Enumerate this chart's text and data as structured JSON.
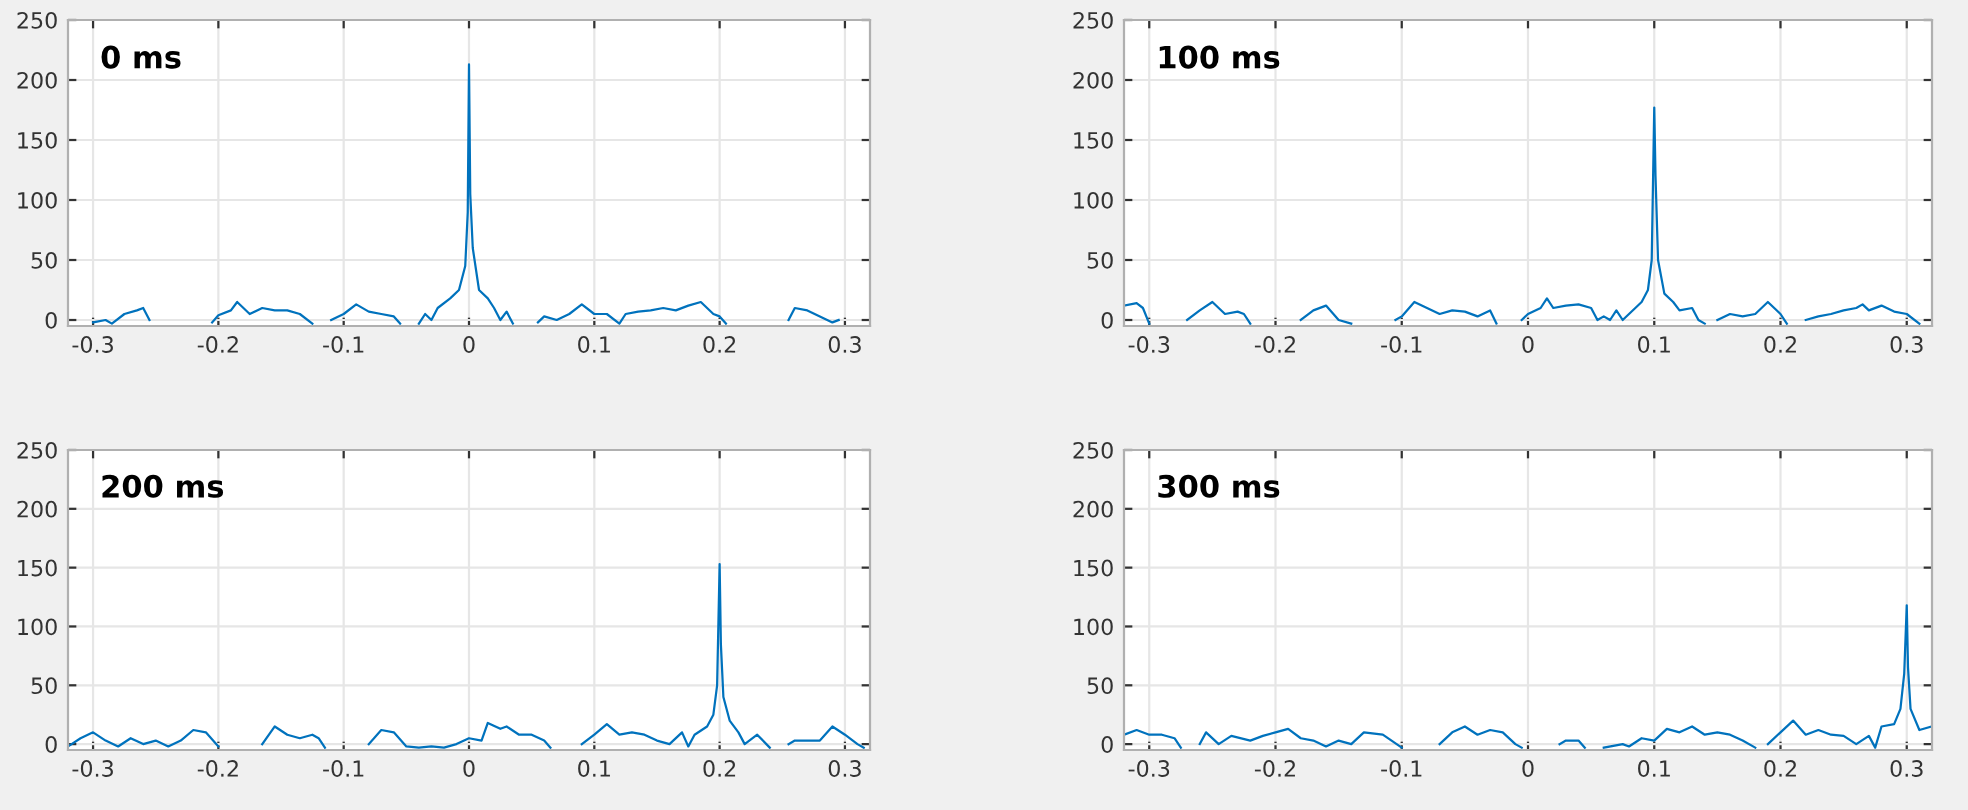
{
  "chart_data": [
    {
      "type": "line",
      "annotations": [
        "0 ms"
      ],
      "xlim": [
        -0.32,
        0.32
      ],
      "ylim": [
        -5,
        250
      ],
      "xticks": [
        -0.3,
        -0.2,
        -0.1,
        0,
        0.1,
        0.2,
        0.3
      ],
      "yticks": [
        0,
        50,
        100,
        150,
        200,
        250
      ],
      "grid": true,
      "series": [
        {
          "color": "#0072bd",
          "x": [
            -0.3,
            -0.29,
            -0.285,
            -0.275,
            -0.265,
            -0.26,
            -0.255,
            -0.25,
            -0.205,
            -0.2,
            -0.19,
            -0.185,
            -0.175,
            -0.165,
            -0.155,
            -0.145,
            -0.135,
            -0.125,
            -0.115,
            -0.11,
            -0.1,
            -0.09,
            -0.08,
            -0.07,
            -0.06,
            -0.055,
            -0.045,
            -0.04,
            -0.035,
            -0.03,
            -0.025,
            -0.015,
            -0.008,
            -0.003,
            -0.001,
            0,
            0.001,
            0.003,
            0.008,
            0.015,
            0.02,
            0.025,
            0.03,
            0.035,
            0.045,
            0.055,
            0.06,
            0.07,
            0.08,
            0.09,
            0.1,
            0.11,
            0.12,
            0.125,
            0.135,
            0.145,
            0.155,
            0.165,
            0.175,
            0.185,
            0.195,
            0.2,
            0.205,
            0.23,
            0.255,
            0.26,
            0.27,
            0.28,
            0.29,
            0.295
          ],
          "values": [
            -2,
            0,
            -3,
            5,
            8,
            10,
            0,
            null,
            -2,
            4,
            8,
            15,
            5,
            10,
            8,
            8,
            5,
            -3,
            null,
            0,
            5,
            13,
            7,
            5,
            3,
            -3,
            null,
            -3,
            5,
            0,
            10,
            18,
            25,
            45,
            90,
            213,
            105,
            60,
            25,
            18,
            10,
            0,
            7,
            -3,
            null,
            -2,
            3,
            0,
            5,
            13,
            5,
            5,
            -3,
            5,
            7,
            8,
            10,
            8,
            12,
            15,
            5,
            3,
            -3,
            null,
            0,
            10,
            8,
            3,
            -2,
            0
          ]
        }
      ]
    },
    {
      "type": "line",
      "annotations": [
        "100 ms"
      ],
      "xlim": [
        -0.32,
        0.32
      ],
      "ylim": [
        -5,
        250
      ],
      "xticks": [
        -0.3,
        -0.2,
        -0.1,
        0,
        0.1,
        0.2,
        0.3
      ],
      "yticks": [
        0,
        50,
        100,
        150,
        200,
        250
      ],
      "grid": true,
      "series": [
        {
          "color": "#0072bd",
          "x": [
            -0.32,
            -0.31,
            -0.305,
            -0.3,
            -0.285,
            -0.27,
            -0.26,
            -0.25,
            -0.24,
            -0.23,
            -0.225,
            -0.22,
            -0.2,
            -0.18,
            -0.17,
            -0.16,
            -0.15,
            -0.14,
            -0.12,
            -0.105,
            -0.1,
            -0.09,
            -0.08,
            -0.07,
            -0.06,
            -0.05,
            -0.04,
            -0.03,
            -0.025,
            -0.015,
            -0.005,
            0,
            0.01,
            0.015,
            0.02,
            0.03,
            0.04,
            0.05,
            0.055,
            0.06,
            0.065,
            0.07,
            0.075,
            0.08,
            0.09,
            0.095,
            0.098,
            0.1,
            0.101,
            0.103,
            0.108,
            0.115,
            0.12,
            0.13,
            0.135,
            0.14,
            0.145,
            0.15,
            0.16,
            0.17,
            0.18,
            0.19,
            0.2,
            0.205,
            0.212,
            0.22,
            0.23,
            0.24,
            0.25,
            0.26,
            0.265,
            0.27,
            0.28,
            0.29,
            0.3,
            0.31
          ],
          "values": [
            12,
            14,
            10,
            -3,
            null,
            0,
            8,
            15,
            5,
            7,
            5,
            -3,
            null,
            0,
            8,
            12,
            0,
            -3,
            null,
            0,
            3,
            15,
            10,
            5,
            8,
            7,
            3,
            8,
            -3,
            null,
            0,
            5,
            10,
            18,
            10,
            12,
            13,
            10,
            0,
            3,
            0,
            8,
            0,
            5,
            15,
            25,
            50,
            177,
            120,
            50,
            22,
            15,
            8,
            10,
            0,
            -3,
            null,
            0,
            5,
            3,
            5,
            15,
            5,
            -3,
            null,
            0,
            3,
            5,
            8,
            10,
            13,
            8,
            12,
            7,
            5,
            -3
          ]
        }
      ]
    },
    {
      "type": "line",
      "annotations": [
        "200 ms"
      ],
      "xlim": [
        -0.32,
        0.32
      ],
      "ylim": [
        -5,
        250
      ],
      "xticks": [
        -0.3,
        -0.2,
        -0.1,
        0,
        0.1,
        0.2,
        0.3
      ],
      "yticks": [
        0,
        50,
        100,
        150,
        200,
        250
      ],
      "grid": true,
      "series": [
        {
          "color": "#0072bd",
          "x": [
            -0.32,
            -0.31,
            -0.3,
            -0.29,
            -0.28,
            -0.27,
            -0.26,
            -0.25,
            -0.24,
            -0.23,
            -0.22,
            -0.21,
            -0.2,
            -0.18,
            -0.165,
            -0.155,
            -0.145,
            -0.135,
            -0.125,
            -0.12,
            -0.115,
            -0.1,
            -0.08,
            -0.07,
            -0.06,
            -0.05,
            -0.04,
            -0.03,
            -0.02,
            -0.01,
            0,
            0.01,
            0.015,
            0.025,
            0.03,
            0.04,
            0.05,
            0.06,
            0.065,
            0.08,
            0.09,
            0.1,
            0.11,
            0.12,
            0.13,
            0.14,
            0.15,
            0.16,
            0.17,
            0.175,
            0.18,
            0.19,
            0.195,
            0.198,
            0.2,
            0.201,
            0.203,
            0.208,
            0.215,
            0.22,
            0.23,
            0.24,
            0.248,
            0.255,
            0.26,
            0.27,
            0.28,
            0.29,
            0.3,
            0.31,
            0.315
          ],
          "values": [
            -2,
            5,
            10,
            3,
            -2,
            5,
            0,
            3,
            -2,
            3,
            12,
            10,
            -2,
            null,
            0,
            15,
            8,
            5,
            8,
            5,
            -3,
            null,
            0,
            12,
            10,
            -2,
            -3,
            -2,
            -3,
            0,
            5,
            3,
            18,
            13,
            15,
            8,
            8,
            3,
            -3,
            null,
            0,
            8,
            17,
            8,
            10,
            8,
            3,
            0,
            10,
            -2,
            8,
            15,
            25,
            50,
            153,
            85,
            40,
            20,
            10,
            0,
            8,
            -3,
            null,
            0,
            3,
            3,
            3,
            15,
            8,
            0,
            -3
          ]
        }
      ]
    },
    {
      "type": "line",
      "annotations": [
        "300 ms"
      ],
      "xlim": [
        -0.32,
        0.32
      ],
      "ylim": [
        -5,
        250
      ],
      "xticks": [
        -0.3,
        -0.2,
        -0.1,
        0,
        0.1,
        0.2,
        0.3
      ],
      "yticks": [
        0,
        50,
        100,
        150,
        200,
        250
      ],
      "grid": true,
      "series": [
        {
          "color": "#0072bd",
          "x": [
            -0.32,
            -0.31,
            -0.3,
            -0.29,
            -0.28,
            -0.275,
            -0.268,
            -0.26,
            -0.255,
            -0.245,
            -0.235,
            -0.22,
            -0.21,
            -0.2,
            -0.19,
            -0.18,
            -0.17,
            -0.16,
            -0.15,
            -0.14,
            -0.13,
            -0.115,
            -0.1,
            -0.085,
            -0.07,
            -0.06,
            -0.05,
            -0.04,
            -0.03,
            -0.02,
            -0.01,
            -0.005,
            0.01,
            0.025,
            0.03,
            0.04,
            0.045,
            0.052,
            0.06,
            0.075,
            0.08,
            0.09,
            0.1,
            0.11,
            0.12,
            0.13,
            0.14,
            0.15,
            0.16,
            0.17,
            0.18,
            0.185,
            0.19,
            0.2,
            0.21,
            0.22,
            0.23,
            0.24,
            0.25,
            0.26,
            0.27,
            0.275,
            0.28,
            0.29,
            0.295,
            0.298,
            0.3,
            0.301,
            0.303,
            0.31,
            0.32
          ],
          "values": [
            8,
            12,
            8,
            8,
            5,
            -3,
            null,
            0,
            10,
            0,
            7,
            3,
            7,
            10,
            13,
            5,
            3,
            -2,
            3,
            0,
            10,
            8,
            -3,
            null,
            0,
            10,
            15,
            8,
            12,
            10,
            0,
            -3,
            null,
            0,
            3,
            3,
            -3,
            null,
            -3,
            0,
            -2,
            5,
            3,
            13,
            10,
            15,
            8,
            10,
            8,
            3,
            -3,
            null,
            0,
            10,
            20,
            8,
            12,
            8,
            7,
            0,
            7,
            -3,
            15,
            17,
            30,
            60,
            118,
            65,
            30,
            12,
            15
          ]
        }
      ]
    }
  ]
}
